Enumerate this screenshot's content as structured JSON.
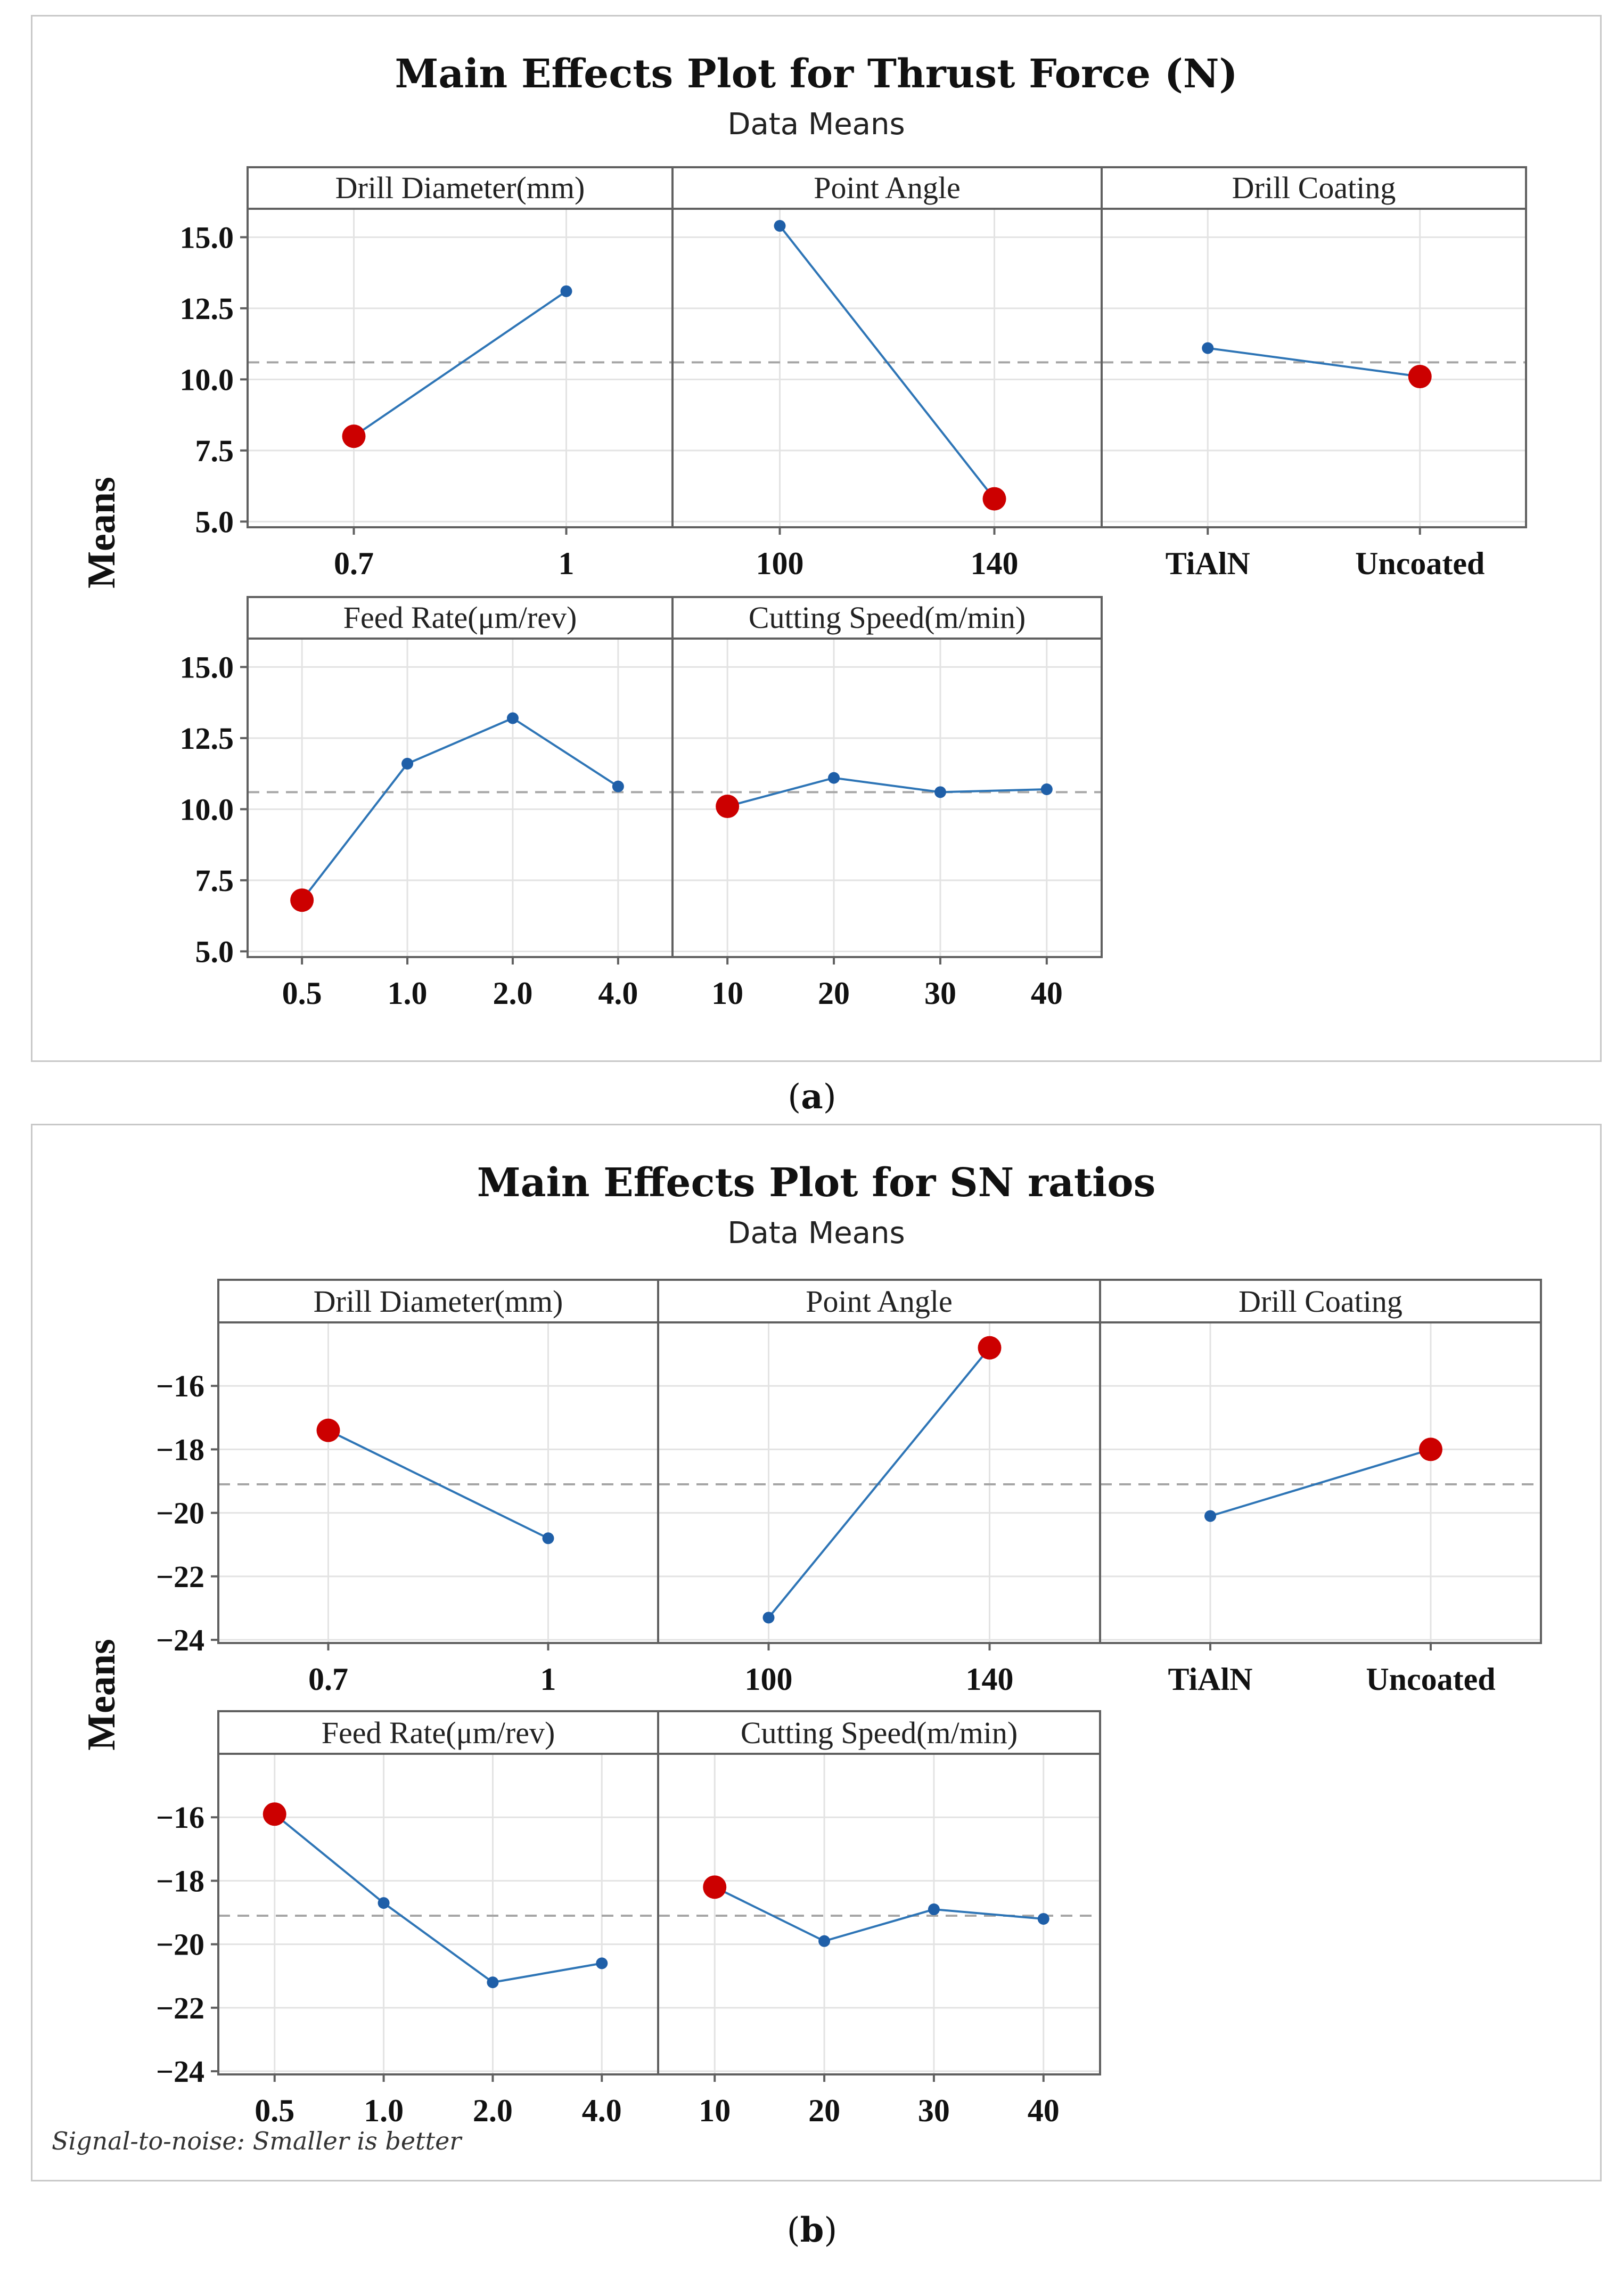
{
  "figures": [
    {
      "title": "Main Effects Plot for Thrust Force (N)",
      "subtitle": "Data Means",
      "caption_letter": "a"
    },
    {
      "title": "Main Effects Plot for SN ratios",
      "subtitle": "Data Means",
      "caption_letter": "b",
      "footnote": "Signal-to-noise: Smaller is better"
    }
  ],
  "colors": {
    "line": "#2e75b6",
    "marker": "#1f5fa8",
    "optimal": "#cc0000",
    "grid": "#e3e3e3",
    "mean_line": "#a6a6a6",
    "frame": "#606060",
    "header_bg": "#ffffff"
  },
  "chart_data": [
    {
      "type": "line",
      "title": "Main Effects Plot for Thrust Force (N)",
      "subtitle": "Data Means",
      "ylabel": "Means",
      "ylim": [
        4.8,
        16.0
      ],
      "yticks": [
        5.0,
        7.5,
        10.0,
        12.5,
        15.0
      ],
      "ytick_labels": [
        "5.0",
        "7.5",
        "10.0",
        "12.5",
        "15.0"
      ],
      "grand_mean": 10.6,
      "panels": [
        {
          "name": "Drill Diameter(mm)",
          "categories": [
            "0.7",
            "1"
          ],
          "values": [
            8.0,
            13.1
          ],
          "optimal_index": 0
        },
        {
          "name": "Point Angle",
          "categories": [
            "100",
            "140"
          ],
          "values": [
            15.4,
            5.8
          ],
          "optimal_index": 1
        },
        {
          "name": "Drill Coating",
          "categories": [
            "TiAlN",
            "Uncoated"
          ],
          "values": [
            11.1,
            10.1
          ],
          "optimal_index": 1
        },
        {
          "name": "Feed Rate(μm/rev)",
          "categories": [
            "0.5",
            "1.0",
            "2.0",
            "4.0"
          ],
          "values": [
            6.8,
            11.6,
            13.2,
            10.8
          ],
          "optimal_index": 0
        },
        {
          "name": "Cutting Speed(m/min)",
          "categories": [
            "10",
            "20",
            "30",
            "40"
          ],
          "values": [
            10.1,
            11.1,
            10.6,
            10.7
          ],
          "optimal_index": 0
        }
      ]
    },
    {
      "type": "line",
      "title": "Main Effects Plot for SN ratios",
      "subtitle": "Data Means",
      "ylabel": "Means",
      "ylim": [
        -24.1,
        -14.0
      ],
      "yticks": [
        -16,
        -18,
        -20,
        -22,
        -24
      ],
      "ytick_labels": [
        "−16",
        "−18",
        "−20",
        "−22",
        "−24"
      ],
      "grand_mean": -19.1,
      "panels": [
        {
          "name": "Drill Diameter(mm)",
          "categories": [
            "0.7",
            "1"
          ],
          "values": [
            -17.4,
            -20.8
          ],
          "optimal_index": 0
        },
        {
          "name": "Point Angle",
          "categories": [
            "100",
            "140"
          ],
          "values": [
            -23.3,
            -14.8
          ],
          "optimal_index": 1
        },
        {
          "name": "Drill Coating",
          "categories": [
            "TiAlN",
            "Uncoated"
          ],
          "values": [
            -20.1,
            -18.0
          ],
          "optimal_index": 1
        },
        {
          "name": "Feed Rate(μm/rev)",
          "categories": [
            "0.5",
            "1.0",
            "2.0",
            "4.0"
          ],
          "values": [
            -15.9,
            -18.7,
            -21.2,
            -20.6
          ],
          "optimal_index": 0
        },
        {
          "name": "Cutting Speed(m/min)",
          "categories": [
            "10",
            "20",
            "30",
            "40"
          ],
          "values": [
            -18.2,
            -19.9,
            -18.9,
            -19.2
          ],
          "optimal_index": 0
        }
      ]
    }
  ]
}
